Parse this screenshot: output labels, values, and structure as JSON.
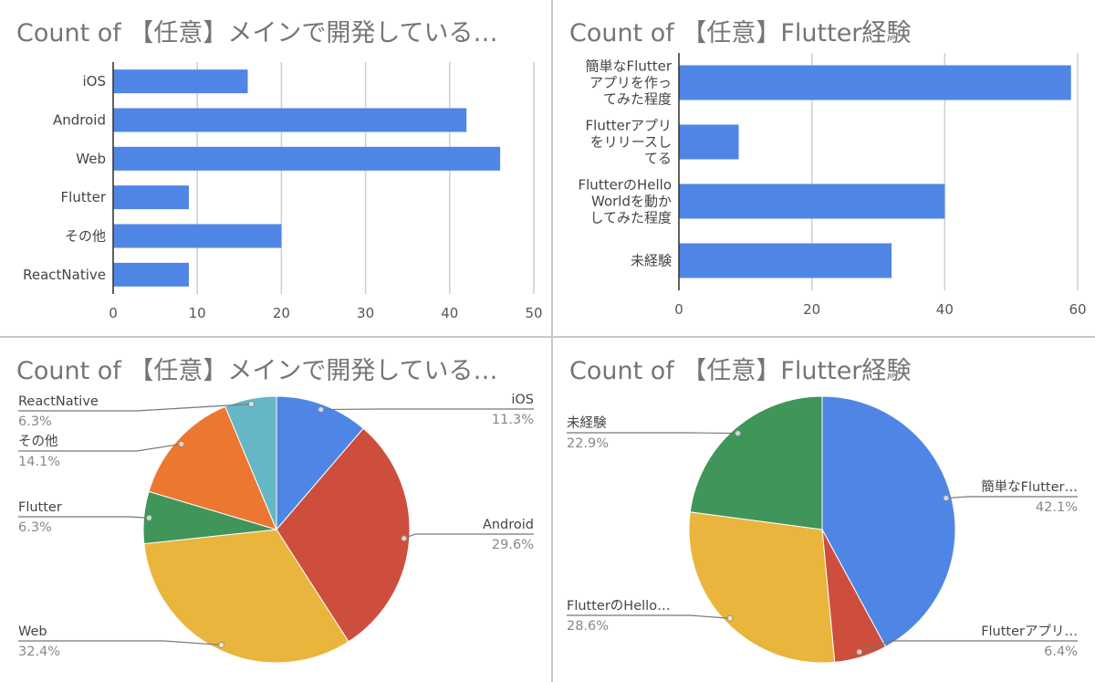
{
  "chart_data": [
    {
      "type": "bar",
      "orientation": "horizontal",
      "title": "Count of 【任意】メインで開発している…",
      "categories": [
        "iOS",
        "Android",
        "Web",
        "Flutter",
        "その他",
        "ReactNative"
      ],
      "values": [
        16,
        42,
        46,
        9,
        20,
        9
      ],
      "xlim": [
        0,
        50
      ],
      "xticks": [
        "0",
        "10",
        "20",
        "30",
        "40",
        "50"
      ],
      "color": "#4f86e6",
      "grid": true
    },
    {
      "type": "bar",
      "orientation": "horizontal",
      "title": "Count of 【任意】Flutter経験",
      "categories": [
        [
          "簡単なFlutter",
          "アプリを作っ",
          "てみた程度"
        ],
        [
          "Flutterアプリ",
          "をリリースし",
          "てる"
        ],
        [
          "FlutterのHello",
          "Worldを動か",
          "してみた程度"
        ],
        [
          "未経験"
        ]
      ],
      "values": [
        59,
        9,
        40,
        32
      ],
      "xlim": [
        0,
        60
      ],
      "xticks": [
        "0",
        "20",
        "40",
        "60"
      ],
      "color": "#4f86e6",
      "grid": true
    },
    {
      "type": "pie",
      "title": "Count of 【任意】メインで開発している…",
      "slices": [
        {
          "label": "iOS",
          "pct": 11.3,
          "pct_text": "11.3%",
          "color": "#4f86e6"
        },
        {
          "label": "Android",
          "pct": 29.6,
          "pct_text": "29.6%",
          "color": "#cd4e3d"
        },
        {
          "label": "Web",
          "pct": 32.4,
          "pct_text": "32.4%",
          "color": "#e9b53d"
        },
        {
          "label": "Flutter",
          "pct": 6.3,
          "pct_text": "6.3%",
          "color": "#3f955a"
        },
        {
          "label": "その他",
          "pct": 14.1,
          "pct_text": "14.1%",
          "color": "#ec7731"
        },
        {
          "label": "ReactNative",
          "pct": 6.3,
          "pct_text": "6.3%",
          "color": "#65b6c6"
        }
      ]
    },
    {
      "type": "pie",
      "title": "Count of 【任意】Flutter経験",
      "slices": [
        {
          "label": "簡単なFlutter…",
          "pct": 42.1,
          "pct_text": "42.1%",
          "color": "#4f86e6"
        },
        {
          "label": "Flutterアプリ…",
          "pct": 6.4,
          "pct_text": "6.4%",
          "color": "#cd4e3d"
        },
        {
          "label": "FlutterのHello…",
          "pct": 28.6,
          "pct_text": "28.6%",
          "color": "#e9b53d"
        },
        {
          "label": "未経験",
          "pct": 22.9,
          "pct_text": "22.9%",
          "color": "#3f955a"
        }
      ]
    }
  ]
}
